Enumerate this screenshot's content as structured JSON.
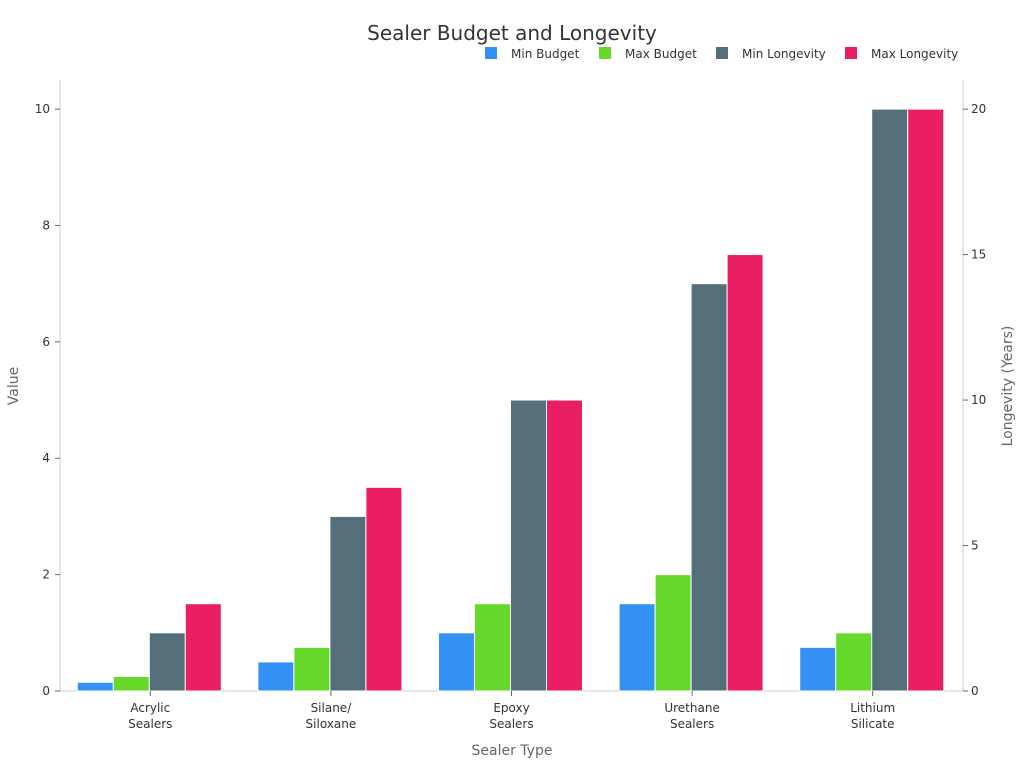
{
  "chart_data": {
    "type": "bar",
    "title": "Sealer Budget and Longevity",
    "xlabel": "Sealer Type",
    "ylabel": "Value",
    "ylabel_right": "Longevity (Years)",
    "categories": [
      [
        "Acrylic",
        "Sealers"
      ],
      [
        "Silane/",
        "Siloxane"
      ],
      [
        "Epoxy",
        "Sealers"
      ],
      [
        "Urethane",
        "Sealers"
      ],
      [
        "Lithium",
        "Silicate"
      ]
    ],
    "ylim": [
      0,
      10.5
    ],
    "ylim_right": [
      0,
      21
    ],
    "yticks": [
      0,
      2,
      4,
      6,
      8,
      10
    ],
    "yticks_right": [
      0,
      5,
      10,
      15,
      20
    ],
    "grid": false,
    "legend_position": "top-right",
    "series": [
      {
        "name": "Min Budget",
        "axis": "left",
        "color": "#3391f5",
        "values": [
          0.15,
          0.5,
          1,
          1.5,
          0.75
        ]
      },
      {
        "name": "Max Budget",
        "axis": "left",
        "color": "#66d92b",
        "values": [
          0.25,
          0.75,
          1.5,
          2,
          1
        ]
      },
      {
        "name": "Min Longevity",
        "axis": "right",
        "color": "#546e7a",
        "values": [
          2,
          6,
          10,
          14,
          20
        ]
      },
      {
        "name": "Max Longevity",
        "axis": "right",
        "color": "#e91e63",
        "values": [
          3,
          7,
          10,
          15,
          20
        ]
      }
    ]
  }
}
